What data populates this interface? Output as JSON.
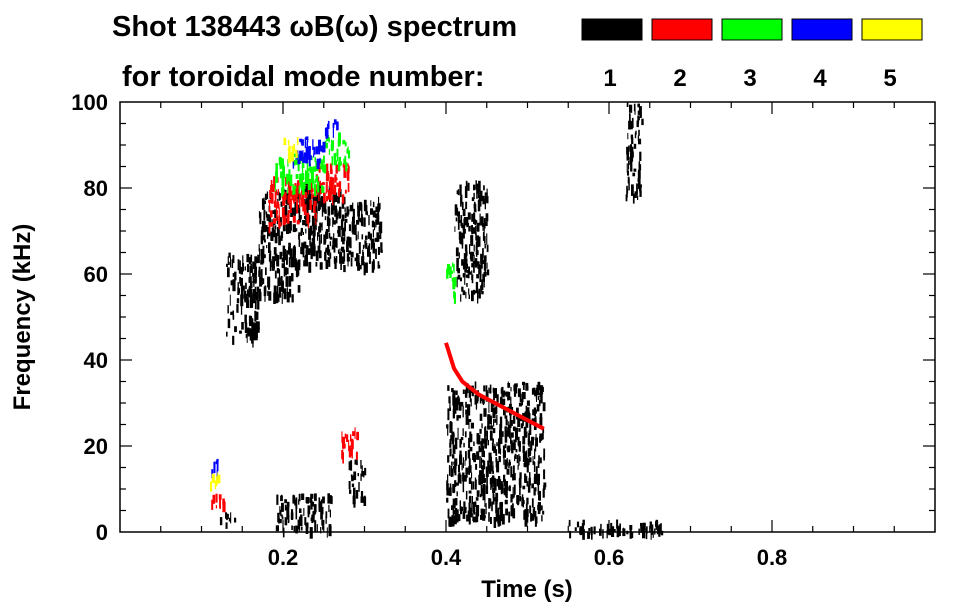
{
  "chart_data": {
    "type": "heatmap",
    "title_line1": "Shot 138443 ωB(ω) spectrum",
    "title_line2": "for toroidal mode number:",
    "xlabel": "Time (s)",
    "ylabel": "Frequency (kHz)",
    "xlim": [
      0.0,
      1.0
    ],
    "ylim": [
      0,
      100
    ],
    "x_ticks": [
      {
        "value": 0.2,
        "label": "0.2"
      },
      {
        "value": 0.4,
        "label": "0.4"
      },
      {
        "value": 0.6,
        "label": "0.6"
      },
      {
        "value": 0.8,
        "label": "0.8"
      }
    ],
    "y_ticks": [
      {
        "value": 0,
        "label": "0"
      },
      {
        "value": 20,
        "label": "20"
      },
      {
        "value": 40,
        "label": "40"
      },
      {
        "value": 60,
        "label": "60"
      },
      {
        "value": 80,
        "label": "80"
      },
      {
        "value": 100,
        "label": "100"
      }
    ],
    "legend": [
      {
        "mode": "1",
        "color": "#000000"
      },
      {
        "mode": "2",
        "color": "#ff0000"
      },
      {
        "mode": "3",
        "color": "#00ff00"
      },
      {
        "mode": "4",
        "color": "#0000ff"
      },
      {
        "mode": "5",
        "color": "#ffff00"
      }
    ],
    "regions": [
      {
        "mode": 1,
        "t": [
          0.13,
          0.17
        ],
        "f": [
          45,
          65
        ]
      },
      {
        "mode": 1,
        "t": [
          0.17,
          0.22
        ],
        "f": [
          55,
          80
        ]
      },
      {
        "mode": 1,
        "t": [
          0.22,
          0.27
        ],
        "f": [
          62,
          82
        ]
      },
      {
        "mode": 1,
        "t": [
          0.27,
          0.32
        ],
        "f": [
          62,
          78
        ]
      },
      {
        "mode": 1,
        "t": [
          0.12,
          0.14
        ],
        "f": [
          2,
          5
        ]
      },
      {
        "mode": 1,
        "t": [
          0.19,
          0.26
        ],
        "f": [
          1,
          9
        ]
      },
      {
        "mode": 1,
        "t": [
          0.28,
          0.3
        ],
        "f": [
          8,
          17
        ]
      },
      {
        "mode": 1,
        "t": [
          0.4,
          0.52
        ],
        "f": [
          3,
          35
        ]
      },
      {
        "mode": 1,
        "t": [
          0.41,
          0.45
        ],
        "f": [
          55,
          82
        ]
      },
      {
        "mode": 1,
        "t": [
          0.62,
          0.64
        ],
        "f": [
          78,
          100
        ]
      },
      {
        "mode": 1,
        "t": [
          0.55,
          0.67
        ],
        "f": [
          0,
          3
        ]
      },
      {
        "mode": 2,
        "t": [
          0.18,
          0.24
        ],
        "f": [
          72,
          83
        ]
      },
      {
        "mode": 2,
        "t": [
          0.24,
          0.28
        ],
        "f": [
          78,
          86
        ]
      },
      {
        "mode": 2,
        "t": [
          0.27,
          0.29
        ],
        "f": [
          18,
          25
        ]
      },
      {
        "mode": 2,
        "t": [
          0.11,
          0.13
        ],
        "f": [
          6,
          9
        ]
      },
      {
        "mode": 3,
        "t": [
          0.19,
          0.25
        ],
        "f": [
          80,
          88
        ]
      },
      {
        "mode": 3,
        "t": [
          0.25,
          0.28
        ],
        "f": [
          86,
          93
        ]
      },
      {
        "mode": 3,
        "t": [
          0.4,
          0.41
        ],
        "f": [
          55,
          63
        ]
      },
      {
        "mode": 4,
        "t": [
          0.21,
          0.25
        ],
        "f": [
          86,
          92
        ]
      },
      {
        "mode": 4,
        "t": [
          0.25,
          0.27
        ],
        "f": [
          92,
          96
        ]
      },
      {
        "mode": 4,
        "t": [
          0.11,
          0.12
        ],
        "f": [
          14,
          17
        ]
      },
      {
        "mode": 5,
        "t": [
          0.2,
          0.22
        ],
        "f": [
          88,
          92
        ]
      },
      {
        "mode": 5,
        "t": [
          0.11,
          0.12
        ],
        "f": [
          11,
          14
        ]
      }
    ],
    "mode2_chirp": [
      {
        "t": 0.4,
        "f": 44
      },
      {
        "t": 0.41,
        "f": 38
      },
      {
        "t": 0.42,
        "f": 35
      },
      {
        "t": 0.44,
        "f": 32
      },
      {
        "t": 0.46,
        "f": 30
      },
      {
        "t": 0.48,
        "f": 28
      },
      {
        "t": 0.5,
        "f": 26
      },
      {
        "t": 0.52,
        "f": 24
      }
    ]
  }
}
